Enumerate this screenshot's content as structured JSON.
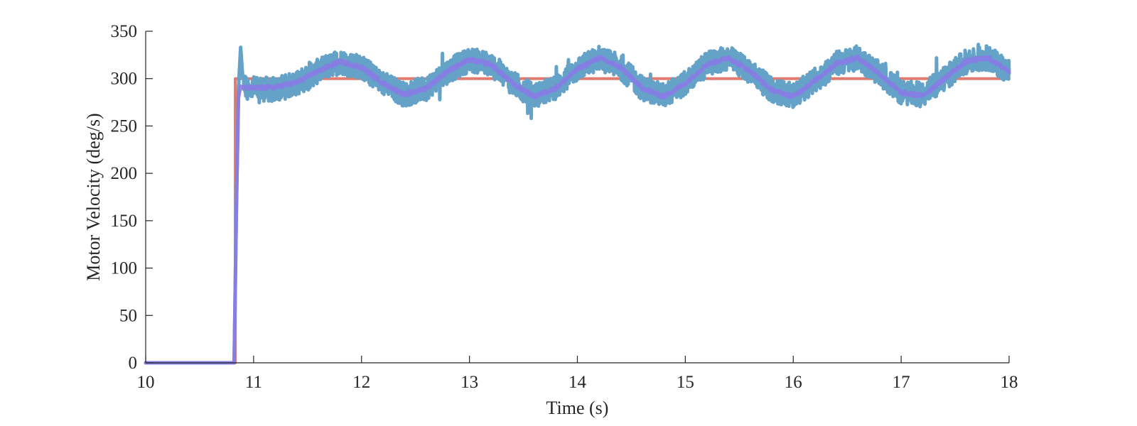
{
  "chart_data": {
    "type": "line",
    "title": "",
    "xlabel": "Time (s)",
    "ylabel": "Motor Velocity (deg/s)",
    "xlim": [
      10,
      18
    ],
    "ylim": [
      0,
      350
    ],
    "xticks": [
      10,
      11,
      12,
      13,
      14,
      15,
      16,
      17,
      18
    ],
    "yticks": [
      0,
      50,
      100,
      150,
      200,
      250,
      300,
      350
    ],
    "grid": false,
    "legend": "none",
    "series": [
      {
        "color": "#e07b6e",
        "style": "step reference",
        "x": [
          10,
          10.83,
          10.83,
          18
        ],
        "y": [
          0,
          0,
          300,
          300
        ]
      },
      {
        "color": "#64a2c8",
        "style": "noisy measured",
        "x": [
          10,
          10.2,
          10.4,
          10.6,
          10.82,
          10.84,
          10.86,
          10.88,
          10.9,
          10.95,
          11.0,
          11.2,
          11.4,
          11.6,
          11.8,
          12.0,
          12.2,
          12.4,
          12.6,
          12.8,
          13.0,
          13.2,
          13.4,
          13.6,
          13.8,
          14.0,
          14.2,
          14.4,
          14.6,
          14.8,
          15.0,
          15.2,
          15.4,
          15.6,
          15.8,
          16.0,
          16.2,
          16.4,
          16.6,
          16.8,
          17.0,
          17.2,
          17.4,
          17.6,
          17.8,
          18.0
        ],
        "y": [
          0,
          0,
          0,
          0,
          0,
          160,
          290,
          333,
          300,
          285,
          290,
          288,
          295,
          308,
          318,
          312,
          295,
          283,
          290,
          308,
          320,
          315,
          295,
          282,
          290,
          310,
          322,
          312,
          290,
          282,
          295,
          315,
          322,
          308,
          288,
          282,
          298,
          316,
          322,
          305,
          285,
          283,
          300,
          318,
          322,
          308
        ],
        "noise": 13
      },
      {
        "color": "#8a7be6",
        "style": "smoothed",
        "x": [
          10,
          10.2,
          10.4,
          10.6,
          10.82,
          10.84,
          10.86,
          10.88,
          10.9,
          11.0,
          11.2,
          11.4,
          11.6,
          11.8,
          12.0,
          12.2,
          12.4,
          12.6,
          12.8,
          13.0,
          13.2,
          13.4,
          13.6,
          13.8,
          14.0,
          14.2,
          14.4,
          14.6,
          14.8,
          15.0,
          15.2,
          15.4,
          15.6,
          15.8,
          16.0,
          16.2,
          16.4,
          16.6,
          16.8,
          17.0,
          17.2,
          17.4,
          17.6,
          17.8,
          18.0
        ],
        "y": [
          0,
          0,
          0,
          0,
          0,
          160,
          280,
          292,
          290,
          290,
          291,
          296,
          308,
          318,
          312,
          295,
          283,
          290,
          308,
          320,
          315,
          295,
          281,
          290,
          310,
          322,
          312,
          290,
          281,
          295,
          315,
          322,
          308,
          288,
          281,
          298,
          316,
          322,
          305,
          285,
          282,
          300,
          318,
          322,
          308
        ]
      }
    ]
  }
}
